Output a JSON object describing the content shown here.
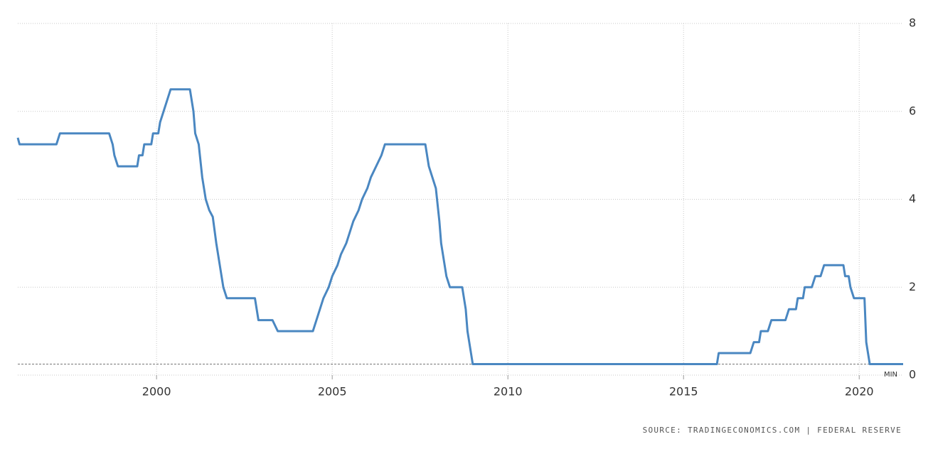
{
  "chart_data": {
    "type": "line",
    "source": "SOURCE: TRADINGECONOMICS.COM | FEDERAL RESERVE",
    "x": [
      1996.05,
      1996.1,
      1997.15,
      1997.25,
      1998.65,
      1998.75,
      1998.8,
      1998.9,
      1999.45,
      1999.5,
      1999.6,
      1999.65,
      1999.85,
      1999.9,
      2000.05,
      2000.1,
      2000.2,
      2000.3,
      2000.4,
      2000.95,
      2001.05,
      2001.1,
      2001.2,
      2001.3,
      2001.4,
      2001.5,
      2001.6,
      2001.7,
      2001.8,
      2001.9,
      2002.0,
      2002.8,
      2002.9,
      2003.3,
      2003.45,
      2004.45,
      2004.55,
      2004.65,
      2004.75,
      2004.9,
      2005.0,
      2005.15,
      2005.25,
      2005.4,
      2005.5,
      2005.6,
      2005.75,
      2005.85,
      2006.0,
      2006.1,
      2006.25,
      2006.4,
      2006.5,
      2007.65,
      2007.75,
      2007.85,
      2007.95,
      2008.05,
      2008.1,
      2008.25,
      2008.35,
      2008.7,
      2008.8,
      2008.85,
      2008.95,
      2009.0,
      2015.95,
      2016.0,
      2016.9,
      2017.0,
      2017.15,
      2017.2,
      2017.4,
      2017.5,
      2017.9,
      2018.0,
      2018.2,
      2018.25,
      2018.4,
      2018.45,
      2018.65,
      2018.75,
      2018.9,
      2019.0,
      2019.55,
      2019.6,
      2019.7,
      2019.75,
      2019.85,
      2020.15,
      2020.2,
      2020.3,
      2021.25
    ],
    "series": [
      {
        "color": "#4a87c1",
        "values": [
          5.4,
          5.25,
          5.25,
          5.5,
          5.5,
          5.25,
          5.0,
          4.75,
          4.75,
          5.0,
          5.0,
          5.25,
          5.25,
          5.5,
          5.5,
          5.75,
          6.0,
          6.25,
          6.5,
          6.5,
          6.0,
          5.5,
          5.25,
          4.5,
          4.0,
          3.75,
          3.6,
          3.0,
          2.5,
          2.0,
          1.75,
          1.75,
          1.25,
          1.25,
          1.0,
          1.0,
          1.25,
          1.5,
          1.75,
          2.0,
          2.25,
          2.5,
          2.75,
          3.0,
          3.25,
          3.5,
          3.75,
          4.0,
          4.25,
          4.5,
          4.75,
          5.0,
          5.25,
          5.25,
          4.75,
          4.5,
          4.25,
          3.5,
          3.0,
          2.25,
          2.0,
          2.0,
          1.5,
          1.0,
          0.5,
          0.25,
          0.25,
          0.5,
          0.5,
          0.75,
          0.75,
          1.0,
          1.0,
          1.25,
          1.25,
          1.5,
          1.5,
          1.75,
          1.75,
          2.0,
          2.0,
          2.25,
          2.25,
          2.5,
          2.5,
          2.25,
          2.25,
          2.0,
          1.75,
          1.75,
          0.75,
          0.25,
          0.25
        ]
      }
    ],
    "min_line": {
      "value": 0.25,
      "label": "MIN"
    },
    "xlim": [
      1996.05,
      2021.25
    ],
    "xticks": [
      2000,
      2005,
      2010,
      2015,
      2020
    ],
    "ylim": [
      0,
      8
    ],
    "yticks": [
      0,
      2,
      4,
      6,
      8
    ],
    "grid": true
  }
}
